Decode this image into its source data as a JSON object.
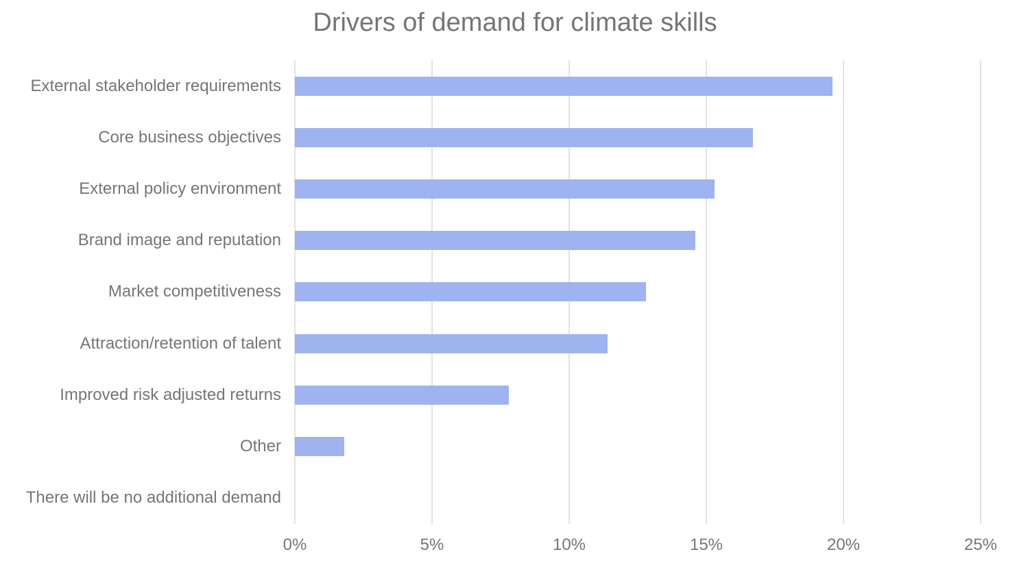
{
  "title": "Drivers of demand for climate skills",
  "colors": {
    "bar": "#9eb3f0",
    "gridline": "#e2e2e2",
    "text": "#757575",
    "background": "#ffffff"
  },
  "chart_data": {
    "type": "bar",
    "orientation": "horizontal",
    "title": "Drivers of demand for climate skills",
    "categories": [
      "External stakeholder requirements",
      "Core business objectives",
      "External policy environment",
      "Brand image and reputation",
      "Market competitiveness",
      "Attraction/retention of talent",
      "Improved risk adjusted returns",
      "Other",
      "There will be no additional demand"
    ],
    "values": [
      19.6,
      16.7,
      15.3,
      14.6,
      12.8,
      11.4,
      7.8,
      1.8,
      0
    ],
    "unit": "%",
    "xlabel": "",
    "ylabel": "",
    "xlim": [
      0,
      25
    ],
    "x_tick_values": [
      0,
      5,
      10,
      15,
      20,
      25
    ],
    "x_tick_labels": [
      "0%",
      "5%",
      "10%",
      "15%",
      "20%",
      "25%"
    ],
    "grid": true,
    "legend": false
  }
}
